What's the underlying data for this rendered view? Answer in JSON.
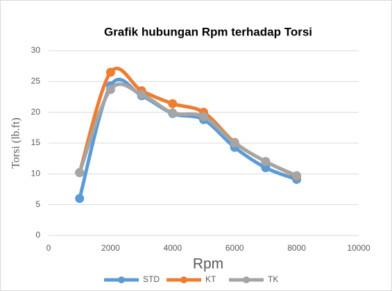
{
  "chart_data": {
    "type": "scatter_smooth",
    "title": "Grafik hubungan Rpm terhadap Torsi",
    "xlabel": "Rpm",
    "ylabel": "Torsi (lb.ft)",
    "xlim": [
      0,
      10000
    ],
    "xticks": [
      0,
      2000,
      4000,
      6000,
      8000,
      10000
    ],
    "ylim": [
      0,
      30
    ],
    "yticks": [
      0,
      5,
      10,
      15,
      20,
      25,
      30
    ],
    "grid": true,
    "legend": "bottom",
    "series": [
      {
        "name": "STD",
        "color": "#5b9bd5",
        "x": [
          1000,
          2000,
          3000,
          4000,
          5000,
          6000,
          7000,
          8000
        ],
        "values": [
          6,
          24.3,
          22.7,
          19.8,
          18.8,
          14.3,
          11,
          9.1
        ]
      },
      {
        "name": "KT",
        "color": "#ed7d31",
        "x": [
          1000,
          2000,
          3000,
          4000,
          5000,
          6000,
          7000,
          8000
        ],
        "values": [
          10.2,
          26.5,
          23.5,
          21.4,
          20,
          15.1,
          12,
          9.6
        ]
      },
      {
        "name": "TK",
        "color": "#a5a5a5",
        "x": [
          1000,
          2000,
          3000,
          4000,
          5000,
          6000,
          7000,
          8000
        ],
        "values": [
          10.2,
          23.7,
          22.9,
          19.9,
          19.3,
          15,
          12,
          9.7
        ]
      }
    ]
  }
}
